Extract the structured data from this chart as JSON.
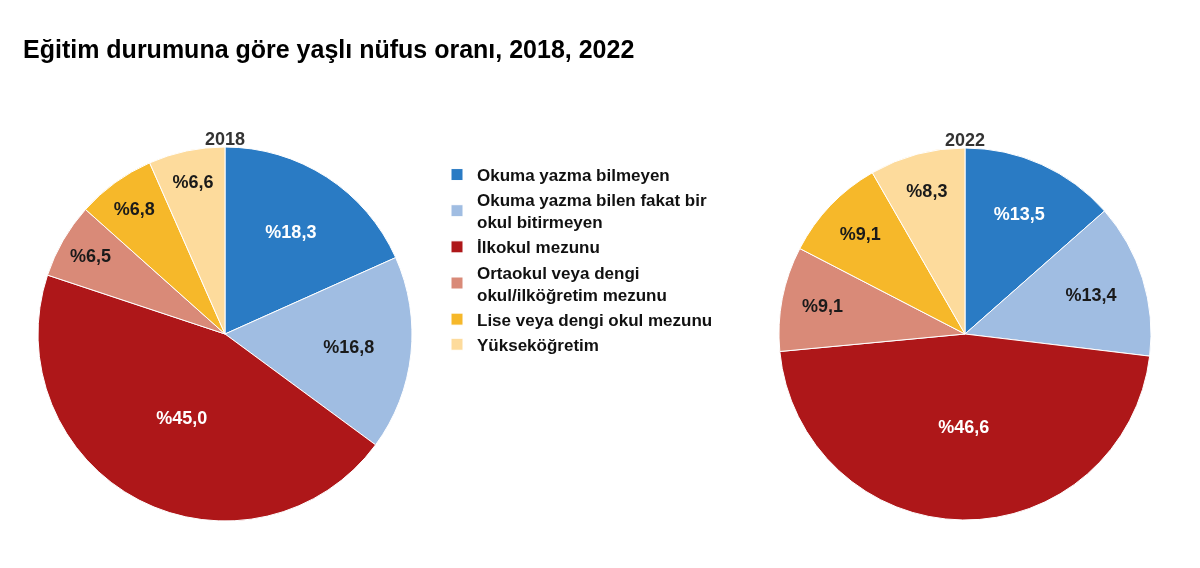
{
  "chart_data": {
    "type": "pie",
    "title": "Eğitim durumuna göre yaşlı nüfus oranı, 2018, 2022",
    "categories": [
      "Okuma yazma bilmeyen",
      "Okuma yazma bilen fakat bir okul bitirmeyen",
      "İlkokul mezunu",
      "Ortaokul veya dengi okul/ilköğretim mezunu",
      "Lise veya dengi okul mezunu",
      "Yükseköğretim"
    ],
    "colors": [
      "#2a7bc4",
      "#a0bde2",
      "#ae1719",
      "#d98a78",
      "#f6b82a",
      "#fddb9c"
    ],
    "series": [
      {
        "name": "2018",
        "values": [
          18.3,
          16.8,
          45.0,
          6.5,
          6.8,
          6.6
        ],
        "value_labels": [
          "%18,3",
          "%16,8",
          "%45,0",
          "%6,5",
          "%6,8",
          "%6,6"
        ]
      },
      {
        "name": "2022",
        "values": [
          13.5,
          13.4,
          46.6,
          9.1,
          9.1,
          8.3
        ],
        "value_labels": [
          "%13,5",
          "%13,4",
          "%46,6",
          "%9,1",
          "%9,1",
          "%8,3"
        ]
      }
    ],
    "legend": "center"
  }
}
